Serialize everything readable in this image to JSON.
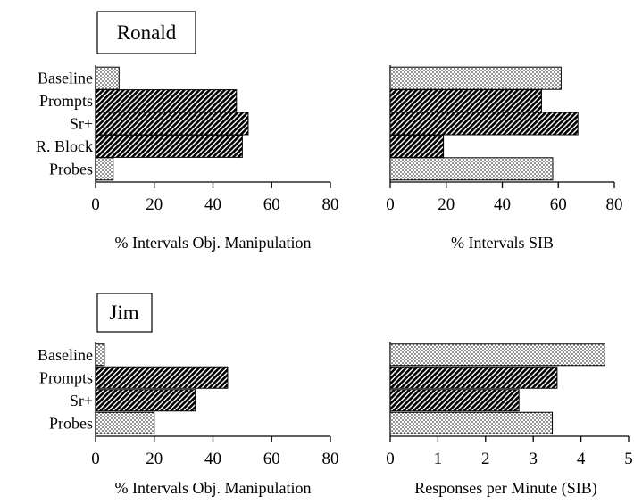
{
  "figure": {
    "panels": [
      {
        "id": "ronald",
        "name": "Ronald"
      },
      {
        "id": "jim",
        "name": "Jim"
      }
    ]
  },
  "chart_data": [
    {
      "type": "bar",
      "orientation": "horizontal",
      "panel": "Ronald",
      "categories": [
        "Baseline",
        "Prompts",
        "Sr+",
        "R. Block",
        "Probes"
      ],
      "values": [
        8,
        48,
        52,
        50,
        6
      ],
      "patterns": [
        "dotted",
        "hatched",
        "hatched",
        "hatched",
        "dotted"
      ],
      "xlabel": "% Intervals Obj. Manipulation",
      "xlim": [
        0,
        80
      ],
      "xticks": [
        "0",
        "20",
        "40",
        "60",
        "80"
      ],
      "grid": false
    },
    {
      "type": "bar",
      "orientation": "horizontal",
      "panel": "Ronald",
      "categories": [
        "Baseline",
        "Prompts",
        "Sr+",
        "R. Block",
        "Probes"
      ],
      "values": [
        61,
        54,
        67,
        19,
        58
      ],
      "patterns": [
        "dotted",
        "hatched",
        "hatched",
        "hatched",
        "dotted"
      ],
      "xlabel": "% Intervals SIB",
      "xlim": [
        0,
        80
      ],
      "xticks": [
        "0",
        "20",
        "40",
        "60",
        "80"
      ],
      "grid": false
    },
    {
      "type": "bar",
      "orientation": "horizontal",
      "panel": "Jim",
      "categories": [
        "Baseline",
        "Prompts",
        "Sr+",
        "Probes"
      ],
      "values": [
        3,
        45,
        34,
        20
      ],
      "patterns": [
        "dotted",
        "hatched",
        "hatched",
        "dotted"
      ],
      "xlabel": "% Intervals Obj. Manipulation",
      "xlim": [
        0,
        80
      ],
      "xticks": [
        "0",
        "20",
        "40",
        "60",
        "80"
      ],
      "grid": false
    },
    {
      "type": "bar",
      "orientation": "horizontal",
      "panel": "Jim",
      "categories": [
        "Baseline",
        "Prompts",
        "Sr+",
        "Probes"
      ],
      "values": [
        4.5,
        3.5,
        2.7,
        3.4
      ],
      "patterns": [
        "dotted",
        "hatched",
        "hatched",
        "dotted"
      ],
      "xlabel": "Responses per Minute (SIB)",
      "xlim": [
        0,
        5
      ],
      "xticks": [
        "0",
        "1",
        "2",
        "3",
        "4",
        "5"
      ],
      "grid": false
    }
  ]
}
